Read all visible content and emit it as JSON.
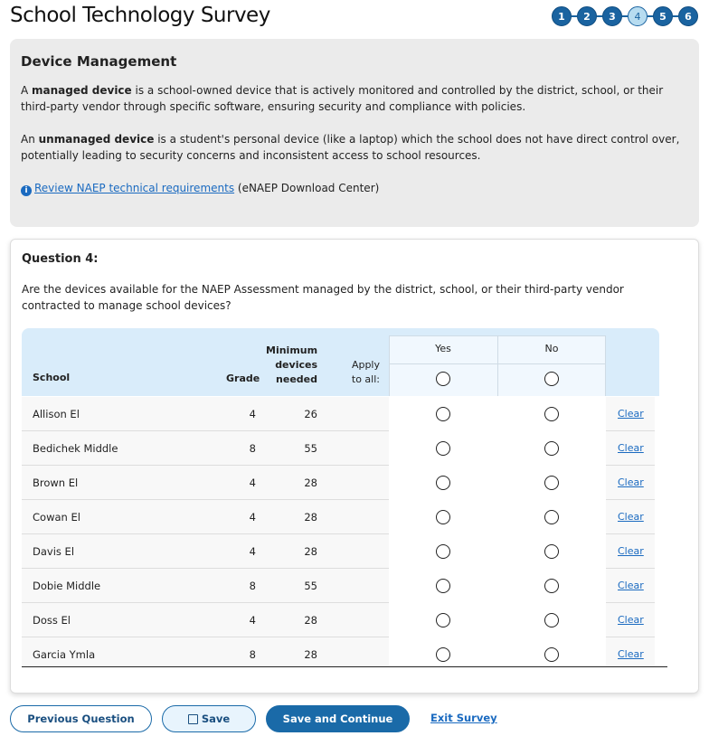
{
  "title": "School Technology Survey",
  "steps": [
    "1",
    "2",
    "3",
    "4",
    "5",
    "6"
  ],
  "current_step": 4,
  "info": {
    "heading": "Device Management",
    "p1_pre": "A ",
    "p1_bold": "managed device",
    "p1_post": " is a school-owned device that is actively monitored and controlled by the district, school, or their third-party vendor through specific software, ensuring security and compliance with policies.",
    "p2_pre": "An ",
    "p2_bold": "unmanaged device",
    "p2_post": " is a student's personal device (like a laptop) which the school does not have direct control over, potentially leading to security concerns and inconsistent access to school resources.",
    "link": "Review NAEP technical requirements",
    "link_suffix": " (eNAEP Download Center)"
  },
  "question": {
    "heading": "Question 4:",
    "text": "Are the devices available for the NAEP Assessment managed by the district, school, or their third-party vendor contracted to manage school devices?"
  },
  "table": {
    "headers": {
      "school": "School",
      "grade": "Grade",
      "min1": "Minimum",
      "min2": "devices",
      "min3": "needed",
      "apply1": "Apply",
      "apply2": "to all:",
      "yes": "Yes",
      "no": "No"
    },
    "clear_label": "Clear",
    "rows": [
      {
        "school": "Allison El",
        "grade": "4",
        "min": "26"
      },
      {
        "school": "Bedichek Middle",
        "grade": "8",
        "min": "55"
      },
      {
        "school": "Brown El",
        "grade": "4",
        "min": "28"
      },
      {
        "school": "Cowan El",
        "grade": "4",
        "min": "28"
      },
      {
        "school": "Davis El",
        "grade": "4",
        "min": "28"
      },
      {
        "school": "Dobie Middle",
        "grade": "8",
        "min": "55"
      },
      {
        "school": "Doss El",
        "grade": "4",
        "min": "28"
      },
      {
        "school": "Garcia Ymla",
        "grade": "8",
        "min": "28"
      }
    ]
  },
  "buttons": {
    "previous": "Previous Question",
    "save": "Save",
    "save_continue": "Save and Continue",
    "exit": "Exit Survey"
  }
}
